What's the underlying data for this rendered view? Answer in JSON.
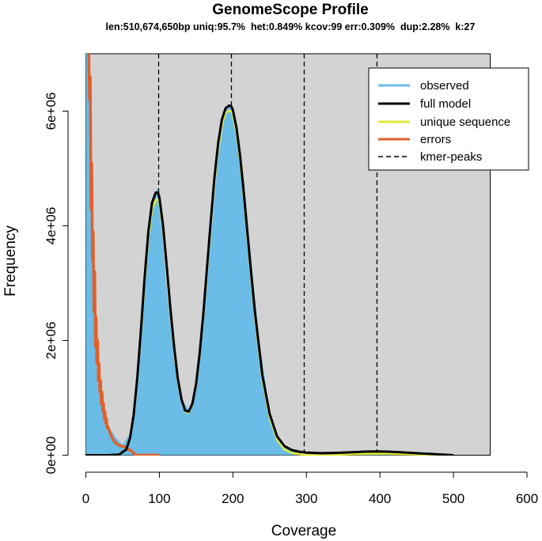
{
  "chart_data": {
    "type": "line",
    "title": "GenomeScope Profile",
    "subtitle": "len:510,674,650bp uniq:95.7%  het:0.849% kcov:99 err:0.309%  dup:2.28%  k:27",
    "xlabel": "Coverage",
    "ylabel": "Frequency",
    "xlim": [
      0,
      600
    ],
    "ylim": [
      0,
      7000000
    ],
    "x_ticks": [
      0,
      100,
      200,
      300,
      400,
      500,
      600
    ],
    "x_tick_labels": [
      "0",
      "100",
      "200",
      "300",
      "400",
      "500",
      "600"
    ],
    "y_ticks": [
      0,
      2000000,
      4000000,
      6000000
    ],
    "y_tick_labels": [
      "0e+00",
      "2e+06",
      "4e+06",
      "6e+06"
    ],
    "model_range_x": [
      0,
      550
    ],
    "kmer_peaks": [
      99,
      198,
      297,
      396
    ],
    "legend_position": "top-right",
    "legend": [
      "observed",
      "full model",
      "unique sequence",
      "errors",
      "kmer-peaks"
    ],
    "colors": {
      "observed": "#6bbce6",
      "full_model": "#000000",
      "unique_sequence": "#e3ea3a",
      "errors": "#e0602a",
      "kmer_peaks": "#000000",
      "panel": "#d3d3d3"
    },
    "series": [
      {
        "name": "observed",
        "x": [
          0,
          2,
          5,
          10,
          15,
          20,
          30,
          40,
          50,
          60,
          70,
          80,
          90,
          97,
          100,
          110,
          120,
          130,
          140,
          150,
          160,
          170,
          180,
          190,
          197,
          205,
          215,
          225,
          235,
          250,
          260,
          275,
          300,
          350,
          400,
          450,
          500
        ],
        "y": [
          7000000,
          7000000,
          7000000,
          2600000,
          1400000,
          900000,
          520000,
          320000,
          180000,
          380000,
          1300000,
          3000000,
          4350000,
          4680000,
          4450000,
          2900000,
          1650000,
          970000,
          800000,
          1150000,
          2200000,
          3750000,
          5200000,
          6000000,
          6120000,
          5800000,
          4800000,
          3400000,
          2100000,
          750000,
          320000,
          120000,
          60000,
          40000,
          60000,
          30000,
          10000
        ]
      },
      {
        "name": "full model",
        "x": [
          0,
          30,
          45,
          55,
          60,
          65,
          70,
          75,
          80,
          85,
          90,
          95,
          98,
          100,
          105,
          110,
          115,
          120,
          125,
          130,
          135,
          140,
          145,
          150,
          155,
          160,
          165,
          170,
          175,
          180,
          185,
          190,
          195,
          198,
          200,
          205,
          210,
          215,
          220,
          225,
          230,
          240,
          250,
          260,
          270,
          280,
          290,
          300,
          320,
          340,
          360,
          380,
          396,
          410,
          430,
          450,
          470,
          500
        ],
        "y": [
          0,
          0,
          10000,
          100000,
          300000,
          700000,
          1350000,
          2200000,
          3100000,
          3900000,
          4400000,
          4580000,
          4580000,
          4500000,
          4000000,
          3300000,
          2550000,
          1900000,
          1350000,
          980000,
          780000,
          760000,
          900000,
          1250000,
          1800000,
          2500000,
          3300000,
          4100000,
          4850000,
          5450000,
          5850000,
          6050000,
          6100000,
          6080000,
          6020000,
          5700000,
          5200000,
          4550000,
          3850000,
          3150000,
          2500000,
          1400000,
          720000,
          330000,
          160000,
          90000,
          60000,
          45000,
          35000,
          40000,
          50000,
          62000,
          65000,
          62000,
          50000,
          35000,
          20000,
          0
        ]
      },
      {
        "name": "unique sequence",
        "x": [
          0,
          30,
          45,
          55,
          60,
          65,
          70,
          75,
          80,
          85,
          90,
          95,
          98,
          100,
          105,
          110,
          115,
          120,
          125,
          130,
          135,
          140,
          145,
          150,
          155,
          160,
          165,
          170,
          175,
          180,
          185,
          190,
          195,
          198,
          200,
          205,
          210,
          215,
          220,
          225,
          230,
          240,
          250,
          260,
          270,
          280,
          290,
          300,
          320,
          340,
          360,
          380,
          396,
          410,
          430,
          450,
          470,
          500
        ],
        "y": [
          0,
          0,
          10000,
          95000,
          290000,
          680000,
          1300000,
          2120000,
          3000000,
          3780000,
          4270000,
          4450000,
          4460000,
          4400000,
          3920000,
          3230000,
          2500000,
          1860000,
          1320000,
          960000,
          760000,
          740000,
          880000,
          1220000,
          1760000,
          2450000,
          3240000,
          4030000,
          4770000,
          5360000,
          5760000,
          5960000,
          6010000,
          5990000,
          5930000,
          5610000,
          5110000,
          4470000,
          3770000,
          3070000,
          2420000,
          1330000,
          650000,
          270000,
          100000,
          40000,
          15000,
          8000,
          5000,
          8000,
          15000,
          22000,
          25000,
          23000,
          18000,
          12000,
          6000,
          0
        ]
      },
      {
        "name": "errors",
        "x": [
          3,
          4,
          5,
          6,
          7,
          8,
          9,
          10,
          11,
          12,
          13,
          14,
          15,
          16,
          17,
          18,
          19,
          20,
          21,
          22,
          23,
          24,
          25,
          26,
          27,
          28,
          29,
          30,
          32,
          34,
          36,
          38,
          40,
          42,
          44,
          46,
          48,
          50,
          52,
          54,
          56,
          58,
          60,
          62,
          64,
          66,
          68,
          70,
          80,
          90,
          100
        ],
        "y": [
          7000000,
          7000000,
          6200000,
          6600000,
          4300000,
          5100000,
          3400000,
          3900000,
          2500000,
          3200000,
          1900000,
          2400000,
          1600000,
          2000000,
          1300000,
          1600000,
          1100000,
          1300000,
          900000,
          1100000,
          780000,
          900000,
          650000,
          760000,
          560000,
          640000,
          480000,
          500000,
          420000,
          360000,
          300000,
          260000,
          220000,
          200000,
          180000,
          170000,
          160000,
          150000,
          145000,
          140000,
          120000,
          100000,
          90000,
          70000,
          50000,
          20000,
          0,
          0,
          0,
          0,
          0
        ]
      }
    ]
  }
}
